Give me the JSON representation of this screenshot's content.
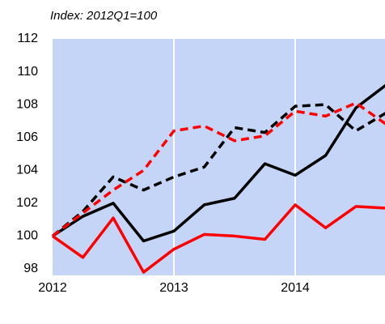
{
  "chart_data": {
    "type": "line",
    "subtitle": "Index: 2012Q1=100",
    "x": [
      2012,
      2012.25,
      2012.5,
      2012.75,
      2013,
      2013.25,
      2013.5,
      2013.75,
      2014,
      2014.25,
      2014.5,
      2014.75
    ],
    "series": [
      {
        "color": "#000000",
        "dashed": false,
        "values": [
          100,
          101.2,
          102,
          99.7,
          100.3,
          101.9,
          102.3,
          104.4,
          103.7,
          104.9,
          107.8,
          109.2
        ]
      },
      {
        "color": "#ff0000",
        "dashed": false,
        "values": [
          100,
          98.7,
          101.1,
          97.8,
          99.2,
          100.1,
          100,
          99.8,
          101.9,
          100.5,
          101.8,
          101.7
        ]
      },
      {
        "color": "#000000",
        "dashed": true,
        "values": [
          100,
          101.5,
          103.6,
          102.8,
          103.6,
          104.2,
          106.6,
          106.3,
          107.9,
          108,
          106.4,
          107.5
        ]
      },
      {
        "color": "#ff0000",
        "dashed": true,
        "values": [
          100,
          101.4,
          102.8,
          104,
          106.4,
          106.7,
          105.8,
          106.1,
          107.6,
          107.3,
          108.1,
          106.8
        ]
      }
    ],
    "xlim": [
      2012,
      2014.74
    ],
    "xticks": [
      2012,
      2013,
      2014
    ],
    "ylim": [
      98,
      112
    ],
    "yticks": [
      98,
      100,
      102,
      104,
      106,
      108,
      110,
      112
    ],
    "grid": "x",
    "background": "#c5d5f7"
  }
}
